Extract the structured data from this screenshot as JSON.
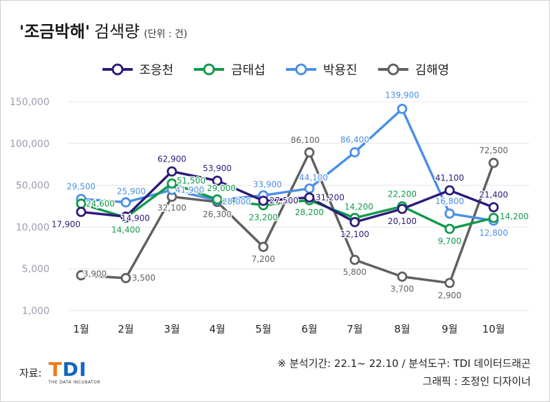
{
  "title": {
    "main": "'조금박해'",
    "sub": "검색량",
    "unit": "(단위 : 건)"
  },
  "colors": {
    "조응천": "#2e1a7a",
    "금태섭": "#109a4a",
    "박용진": "#4a8fe7",
    "김해영": "#5f5f5f",
    "grid": "#e4e4ec",
    "axis_text": "#9a9ab0"
  },
  "chart_data": {
    "type": "line",
    "categories": [
      "1월",
      "2월",
      "3월",
      "4월",
      "5월",
      "6월",
      "7월",
      "8월",
      "9월",
      "10월"
    ],
    "y_ticks": [
      1000,
      5000,
      10000,
      50000,
      100000,
      150000
    ],
    "y_tick_labels": [
      "1,000",
      "5,000",
      "10,000",
      "50,000",
      "100,000",
      "150,000"
    ],
    "ylim": [
      1000,
      150000
    ],
    "y_scale": "log",
    "grid": true,
    "legend_position": "top",
    "series": [
      {
        "name": "조응천",
        "values": [
          17900,
          14900,
          62900,
          53900,
          27500,
          31200,
          12100,
          20100,
          41100,
          21400
        ],
        "labels": [
          "17,900",
          "14,900",
          "62,900",
          "53,900",
          "27,500",
          "31,200",
          "12,100",
          "20,100",
          "41,100",
          "21,400"
        ]
      },
      {
        "name": "금태섭",
        "values": [
          24600,
          14400,
          51500,
          29000,
          23200,
          28200,
          14200,
          22200,
          9700,
          14200
        ],
        "labels": [
          "24,600",
          "14,400",
          "51,500",
          "29,000",
          "23,200",
          "28,200",
          "14,200",
          "22,200",
          "9,700",
          "14,200"
        ]
      },
      {
        "name": "박용진",
        "values": [
          29500,
          25900,
          41900,
          28000,
          33900,
          44100,
          86400,
          139900,
          16800,
          12800
        ],
        "labels": [
          "29,500",
          "25,900",
          "41,900",
          "28,000",
          "33,900",
          "44,100",
          "86,400",
          "139,900",
          "16,800",
          "12,800"
        ]
      },
      {
        "name": "김해영",
        "values": [
          3900,
          3500,
          32100,
          26300,
          7200,
          86100,
          5800,
          3700,
          2900,
          72500
        ],
        "labels": [
          "3,900",
          "3,500",
          "32,100",
          "26,300",
          "7,200",
          "86,100",
          "5,800",
          "3,700",
          "2,900",
          "72,500"
        ]
      }
    ]
  },
  "footer": {
    "source_label": "자료:",
    "logo_text": "TDI",
    "logo_subtext": "THE DATA INCUBATOR",
    "analysis_note": "※ 분석기간: 22.1~ 22.10 / 분석도구: TDI 데이터드래곤",
    "graphic_credit": "그래픽 : 조정인 디자이너"
  }
}
